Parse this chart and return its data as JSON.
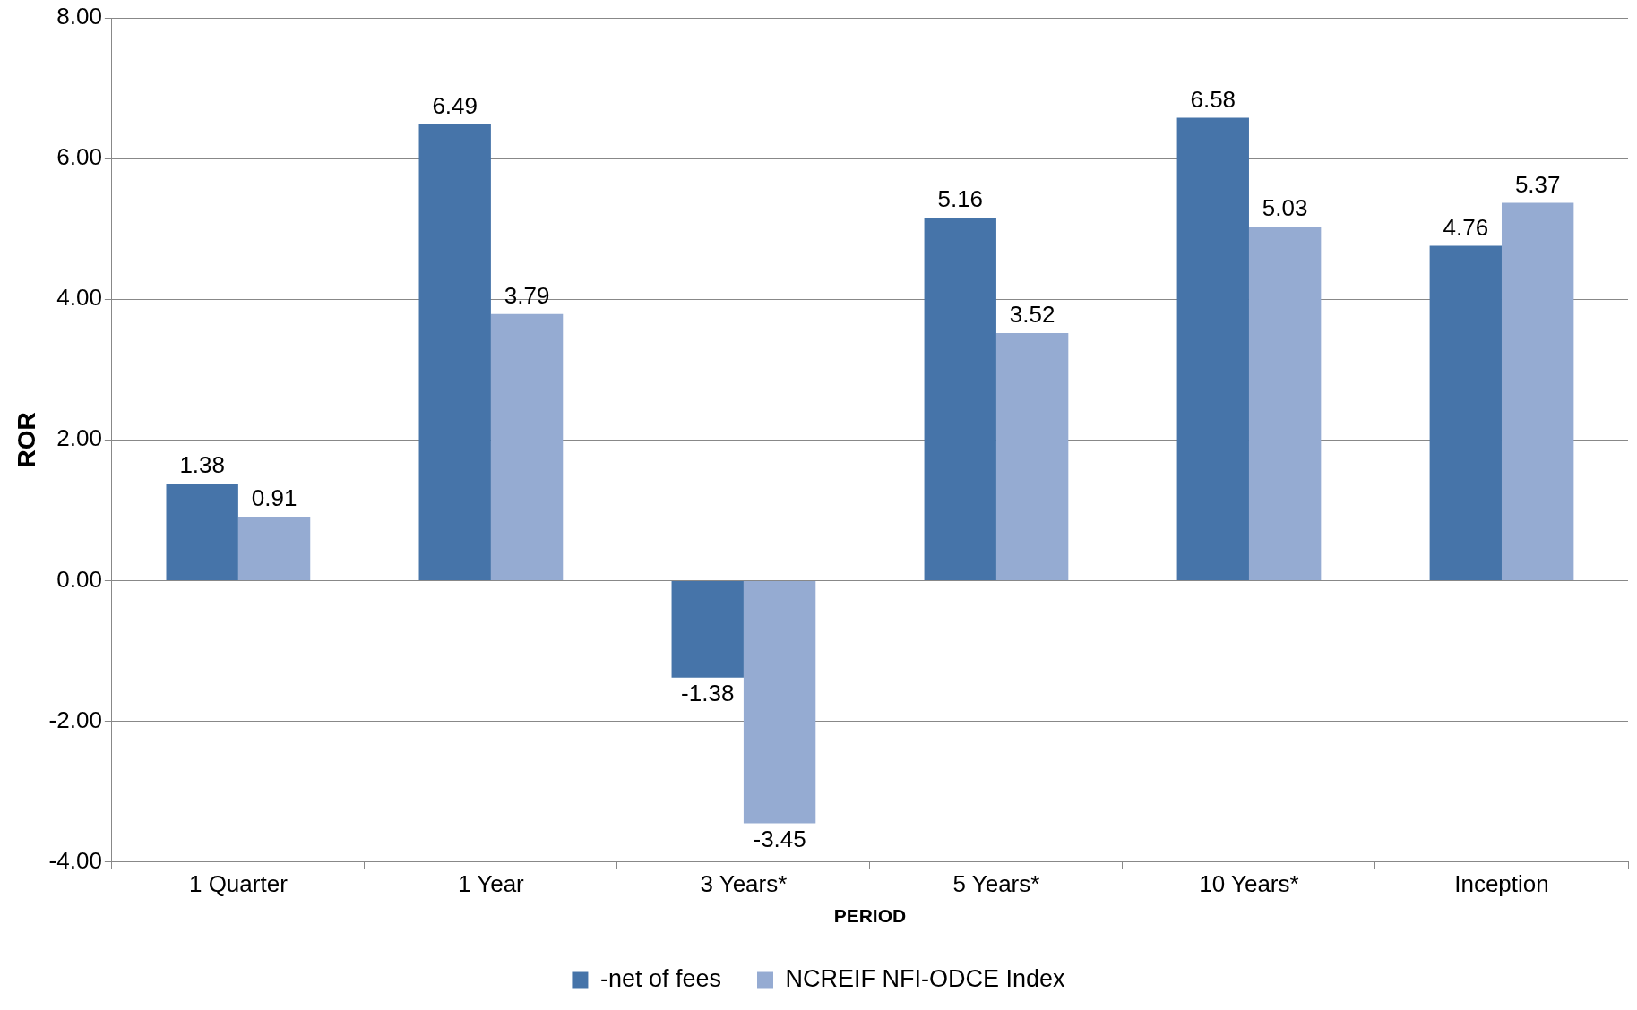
{
  "chart_data": {
    "type": "bar",
    "xlabel": "PERIOD",
    "ylabel": "ROR",
    "categories": [
      "1 Quarter",
      "1 Year",
      "3 Years*",
      "5 Years*",
      "10 Years*",
      "Inception"
    ],
    "series": [
      {
        "name": "-net of fees",
        "color": "#4674a9",
        "values": [
          1.38,
          6.49,
          -1.38,
          5.16,
          6.58,
          4.76
        ]
      },
      {
        "name": "NCREIF NFI-ODCE Index",
        "color": "#95abd2",
        "values": [
          0.91,
          3.79,
          -3.45,
          3.52,
          5.03,
          5.37
        ]
      }
    ],
    "ylim": [
      -4,
      8
    ],
    "yticks": [
      {
        "value": -4,
        "label": "-4.00"
      },
      {
        "value": -2,
        "label": "-2.00"
      },
      {
        "value": 0,
        "label": "0.00"
      },
      {
        "value": 2,
        "label": "2.00"
      },
      {
        "value": 4,
        "label": "4.00"
      },
      {
        "value": 6,
        "label": "6.00"
      },
      {
        "value": 8,
        "label": "8.00"
      }
    ],
    "grid": "y",
    "legend": "bottom",
    "data_labels": true
  }
}
